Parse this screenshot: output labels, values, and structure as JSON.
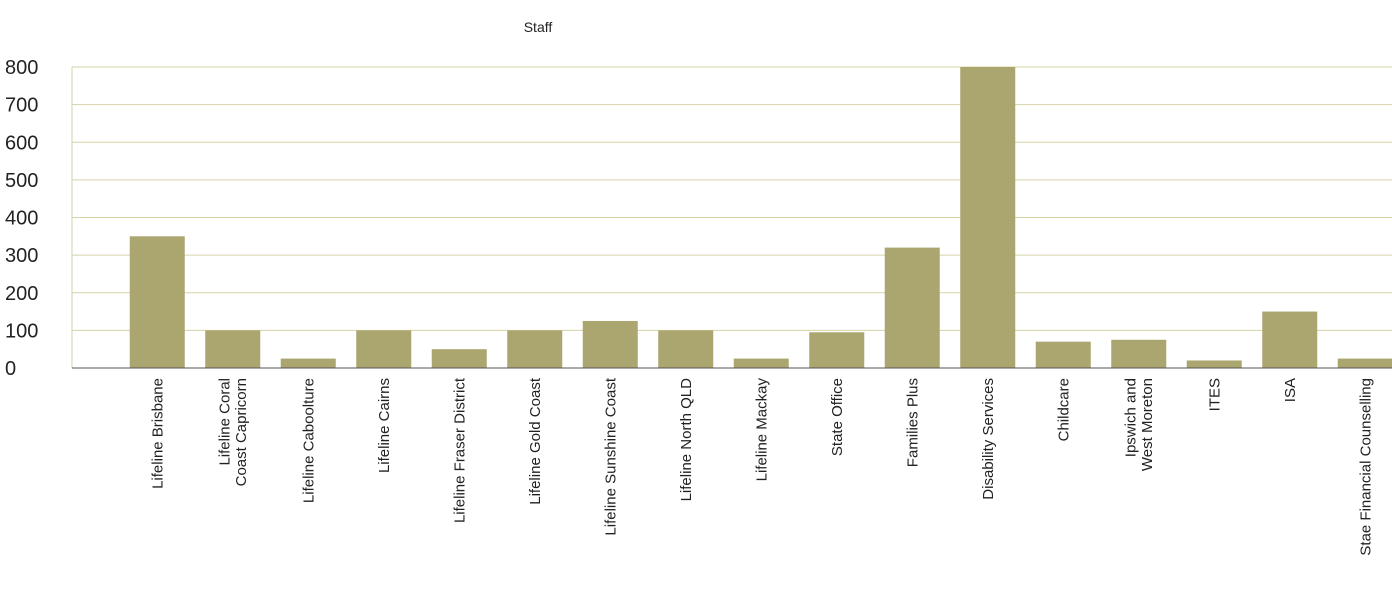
{
  "chart_data": {
    "type": "bar",
    "title": "Staff",
    "categories": [
      "Lifeline Brisbane",
      "Lifeline Coral\nCoast Capricorn",
      "Lifeline Caboolture",
      "Lifeline Cairns",
      "Lifeline Fraser District",
      "Lifeline Gold Coast",
      "Lifeline Sunshine Coast",
      "Lifeline North QLD",
      "Lifeline Mackay",
      "State Office",
      "Families Plus",
      "Disability Services",
      "Childcare",
      "Ipswich and\nWest Moreton",
      "ITES",
      "ISA",
      "Stae Financial Counselling"
    ],
    "values": [
      350,
      100,
      25,
      100,
      50,
      100,
      125,
      100,
      25,
      95,
      320,
      800,
      70,
      75,
      20,
      150,
      25
    ],
    "color": "#aba56f",
    "ylim": [
      0,
      800
    ],
    "yticks": [
      0,
      100,
      200,
      300,
      400,
      500,
      600,
      700,
      800
    ],
    "grid": true
  }
}
